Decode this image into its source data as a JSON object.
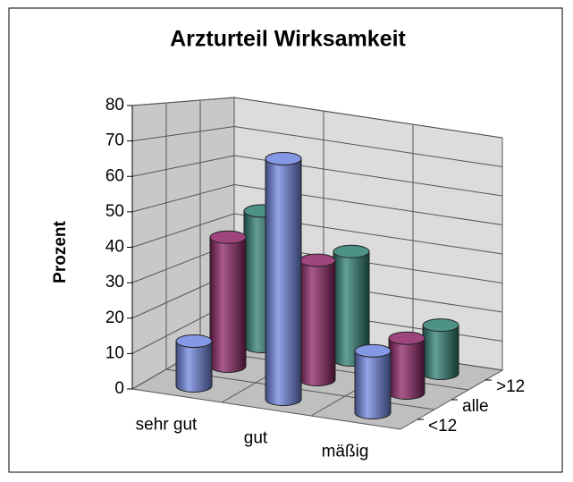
{
  "chart_data": {
    "type": "bar3d",
    "title": "Arzturteil Wirksamkeit",
    "y_label": "Prozent",
    "categories": [
      "sehr gut",
      "gut",
      "mäßig"
    ],
    "series": [
      {
        "name": "<12",
        "color": "#6f86e0",
        "values": [
          13,
          70,
          18
        ]
      },
      {
        "name": "alle",
        "color": "#8e2466",
        "values": [
          40,
          37,
          17
        ]
      },
      {
        "name": ">12",
        "color": "#2f7f72",
        "values": [
          45,
          36,
          16
        ]
      }
    ],
    "ylim": [
      0,
      80
    ],
    "yticks": [
      0,
      10,
      20,
      30,
      40,
      50,
      60,
      70,
      80
    ],
    "grid": true
  }
}
